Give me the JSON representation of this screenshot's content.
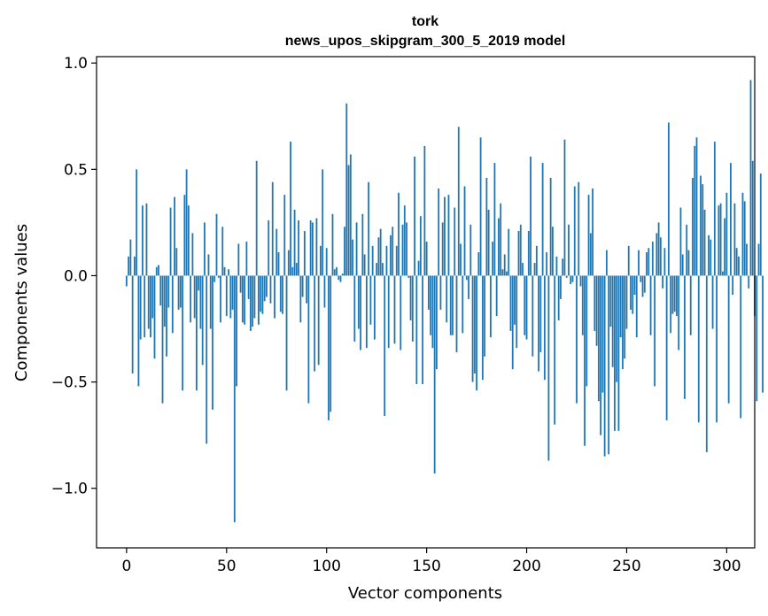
{
  "chart_data": {
    "type": "bar",
    "title_line1": "tork",
    "title_line2": "news_upos_skipgram_300_5_2019 model",
    "xlabel": "Vector components",
    "ylabel": "Components values",
    "xlim": [
      -15,
      314
    ],
    "ylim": [
      -1.28,
      1.03
    ],
    "xticks": [
      0,
      50,
      100,
      150,
      200,
      250,
      300
    ],
    "xtick_labels": [
      "0",
      "50",
      "100",
      "150",
      "200",
      "250",
      "300"
    ],
    "yticks": [
      -1.0,
      -0.5,
      0.0,
      0.5,
      1.0
    ],
    "ytick_labels": [
      "−1.0",
      "−0.5",
      "0.0",
      "0.5",
      "1.0"
    ],
    "bar_color": "#1f77b4",
    "values": [
      -0.05,
      0.09,
      0.17,
      -0.46,
      0.09,
      0.5,
      -0.52,
      -0.3,
      0.33,
      -0.29,
      0.34,
      -0.25,
      -0.29,
      -0.2,
      -0.39,
      0.04,
      0.05,
      -0.14,
      -0.6,
      -0.24,
      -0.38,
      -0.15,
      0.32,
      -0.27,
      0.37,
      0.13,
      -0.16,
      -0.15,
      -0.54,
      0.38,
      0.5,
      0.33,
      -0.22,
      0.2,
      -0.2,
      -0.54,
      -0.07,
      -0.25,
      -0.42,
      0.25,
      -0.79,
      0.1,
      -0.25,
      -0.63,
      -0.03,
      0.29,
      -0.01,
      -0.22,
      0.23,
      0.04,
      -0.19,
      0.03,
      -0.2,
      -0.16,
      -1.16,
      -0.52,
      0.15,
      -0.08,
      -0.22,
      -0.23,
      0.16,
      -0.11,
      -0.26,
      -0.24,
      -0.2,
      0.54,
      -0.23,
      -0.17,
      -0.18,
      -0.12,
      -0.1,
      0.26,
      -0.13,
      0.44,
      -0.2,
      0.22,
      0.11,
      -0.17,
      -0.18,
      0.38,
      -0.54,
      0.12,
      0.63,
      0.04,
      0.31,
      0.06,
      0.26,
      -0.22,
      -0.1,
      0.21,
      -0.13,
      -0.6,
      0.26,
      0.25,
      -0.45,
      0.27,
      -0.42,
      0.14,
      0.5,
      -0.15,
      0.13,
      -0.68,
      -0.64,
      0.29,
      0.03,
      0.04,
      -0.02,
      -0.03,
      0.01,
      0.23,
      0.81,
      0.52,
      0.57,
      0.17,
      -0.31,
      0.25,
      -0.25,
      -0.35,
      0.29,
      0.1,
      -0.34,
      0.44,
      -0.23,
      0.14,
      -0.3,
      0.06,
      0.18,
      0.22,
      0.06,
      -0.66,
      0.14,
      -0.34,
      0.19,
      0.23,
      -0.32,
      0.14,
      0.39,
      -0.35,
      0.24,
      0.33,
      0.25,
      -0.01,
      -0.21,
      -0.31,
      0.56,
      -0.51,
      0.07,
      0.28,
      -0.51,
      0.61,
      0.16,
      -0.16,
      -0.28,
      -0.34,
      -0.93,
      -0.44,
      0.41,
      -0.16,
      0.25,
      0.37,
      -0.22,
      0.38,
      -0.28,
      -0.28,
      0.32,
      -0.36,
      0.7,
      0.15,
      -0.27,
      0.42,
      -0.02,
      -0.11,
      0.24,
      -0.5,
      -0.46,
      -0.54,
      0.11,
      0.65,
      -0.49,
      -0.38,
      0.46,
      0.31,
      -0.29,
      0.16,
      0.53,
      -0.19,
      0.27,
      0.34,
      0.03,
      0.1,
      0.02,
      0.22,
      -0.26,
      -0.44,
      -0.23,
      -0.34,
      0.21,
      0.24,
      0.06,
      -0.28,
      -0.3,
      0.21,
      0.56,
      -0.38,
      0.06,
      0.14,
      -0.45,
      -0.36,
      0.53,
      -0.49,
      0.11,
      -0.87,
      0.46,
      0.23,
      -0.7,
      0.09,
      -0.21,
      -0.11,
      0.08,
      0.64,
      -0.01,
      0.24,
      -0.04,
      -0.03,
      0.42,
      -0.6,
      0.44,
      -0.05,
      -0.28,
      -0.8,
      -0.52,
      0.38,
      0.2,
      0.41,
      -0.26,
      -0.33,
      -0.59,
      -0.75,
      -0.55,
      -0.85,
      0.12,
      -0.84,
      -0.24,
      -0.43,
      -0.73,
      -0.5,
      -0.73,
      -0.29,
      -0.44,
      -0.39,
      -0.25,
      0.14,
      -0.16,
      -0.18,
      -0.09,
      -0.29,
      0.12,
      -0.03,
      -0.1,
      -0.08,
      0.11,
      0.13,
      -0.28,
      0.16,
      -0.52,
      0.2,
      0.25,
      0.18,
      -0.06,
      0.13,
      -0.68,
      0.72,
      -0.27,
      -0.18,
      -0.17,
      -0.19,
      -0.35,
      0.32,
      0.1,
      -0.58,
      0.24,
      0.12,
      -0.28,
      0.46,
      0.61,
      0.65,
      -0.69,
      0.47,
      0.43,
      0.31,
      -0.83,
      0.19,
      0.17,
      -0.25,
      0.63,
      -0.69,
      0.33,
      0.34,
      0.02,
      0.27,
      0.39,
      -0.6,
      0.53,
      -0.09,
      0.34,
      0.13,
      0.09,
      -0.67,
      0.39,
      0.35,
      0.15,
      -0.06,
      0.92,
      0.54,
      -0.19,
      -0.59,
      0.15,
      0.48,
      -0.55
    ]
  }
}
